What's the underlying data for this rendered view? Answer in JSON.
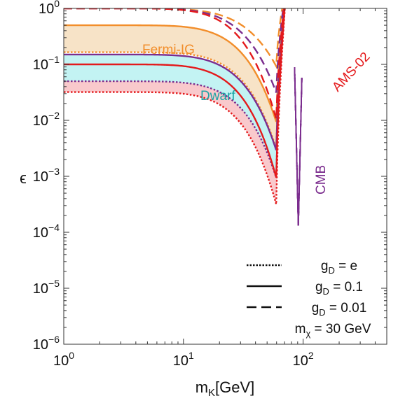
{
  "chart_data": {
    "type": "line",
    "xlabel": {
      "main": "m",
      "sub": "K",
      "rest": "[GeV]"
    },
    "ylabel": "ϵ",
    "x_scale": "log",
    "y_scale": "log",
    "xlim": [
      1,
      500
    ],
    "ylim": [
      1e-06,
      1
    ],
    "x_ticks": [
      {
        "value": 1,
        "base": "10",
        "exp": "0"
      },
      {
        "value": 10,
        "base": "10",
        "exp": "1"
      },
      {
        "value": 100,
        "base": "10",
        "exp": "2"
      }
    ],
    "y_ticks": [
      {
        "value": 1,
        "base": "10",
        "exp": "0"
      },
      {
        "value": 0.1,
        "base": "10",
        "exp": "−1"
      },
      {
        "value": 0.01,
        "base": "10",
        "exp": "−2"
      },
      {
        "value": 0.001,
        "base": "10",
        "exp": "−3"
      },
      {
        "value": 0.0001,
        "base": "10",
        "exp": "−4"
      },
      {
        "value": 1e-05,
        "base": "10",
        "exp": "−5"
      },
      {
        "value": 1e-06,
        "base": "10",
        "exp": "−6"
      }
    ],
    "resonances": {
      "dip1": 60,
      "dip2": 91.2
    },
    "colors": {
      "fermi": "#f28e2b",
      "fermi_fill": "#f7e3c7",
      "dwarf_fill": "#c3f3f3",
      "dwarf": "#7b2d8e",
      "ams": "#e41a1c",
      "ams_fill": "#f9c9cc",
      "cmb": "#7b2d8e"
    },
    "series": [
      {
        "group": "Fermi-IG",
        "line_style": "dotted",
        "plateau": 0.165,
        "dip": 0.003,
        "color": "#f28e2b"
      },
      {
        "group": "Fermi-IG",
        "line_style": "solid",
        "plateau": 0.5,
        "dip": 0.009,
        "color": "#f28e2b"
      },
      {
        "group": "Fermi-IG",
        "line_style": "dashed",
        "plateau": 1.0,
        "dip": 0.09,
        "color": "#f28e2b"
      },
      {
        "group": "Dwarf",
        "line_style": "dotted",
        "plateau": 0.05,
        "dip": 0.0009,
        "color": "#7b2d8e"
      },
      {
        "group": "Dwarf",
        "line_style": "solid",
        "plateau": 0.15,
        "dip": 0.0028,
        "color": "#7b2d8e"
      },
      {
        "group": "Dwarf",
        "line_style": "dashed",
        "plateau": 1.0,
        "dip": 0.03,
        "color": "#7b2d8e"
      },
      {
        "group": "AMS-02",
        "line_style": "dotted",
        "plateau": 0.032,
        "dip": 0.0003,
        "color": "#e41a1c"
      },
      {
        "group": "AMS-02",
        "line_style": "solid",
        "plateau": 0.1,
        "dip": 0.0009,
        "color": "#e41a1c"
      },
      {
        "group": "AMS-02",
        "line_style": "dashed",
        "plateau": 1.0,
        "dip": 0.01,
        "color": "#e41a1c"
      }
    ],
    "cmb_spike": {
      "x": 91.2,
      "bottom": 0.00013,
      "top": 1.0
    },
    "annotations": {
      "fermi": "Fermi-IG",
      "dwarf": "Dwarf",
      "ams": "AMS-02",
      "cmb": "CMB"
    },
    "legend": {
      "placement": "bottom-right",
      "entries": [
        {
          "line_style": "dotted",
          "label_main": "g",
          "label_sub": "D",
          "label_rest": " = e"
        },
        {
          "line_style": "solid",
          "label_main": "g",
          "label_sub": "D",
          "label_rest": " = 0.1"
        },
        {
          "line_style": "dashed",
          "label_main": "g",
          "label_sub": "D",
          "label_rest": " = 0.01"
        }
      ],
      "note": {
        "main": "m",
        "sub": "χ",
        "rest": " = 30 GeV"
      }
    },
    "grid": false
  }
}
